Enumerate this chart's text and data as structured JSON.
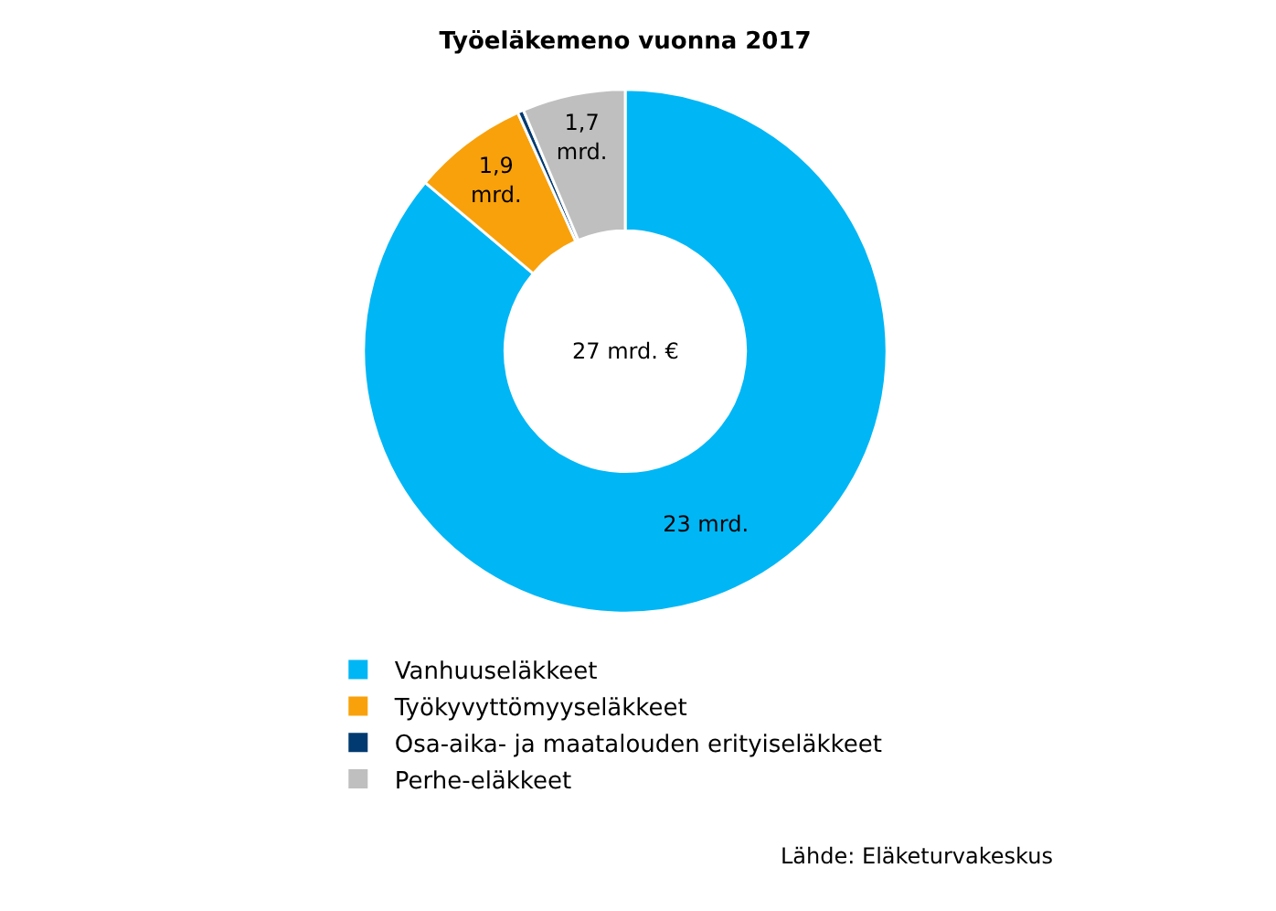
{
  "chart_data": {
    "type": "donut",
    "title": "Työeläkemeno vuonna 2017",
    "categories": [
      "Vanhuuseläkkeet",
      "Työkyvyttömyyseläkkeet",
      "Osa-aika- ja maatalouden erityiseläkkeet",
      "Perhe-eläkkeet"
    ],
    "values": [
      23,
      1.9,
      0.1,
      1.7
    ],
    "colors": [
      "#00b6f5",
      "#f9a10b",
      "#003a70",
      "#bfbfbf"
    ],
    "value_labels": [
      "23 mrd.",
      "1,9\nmrd.",
      null,
      "1,7\nmrd."
    ],
    "annotations": [
      "27 mrd. €",
      "Lähde: Eläketurvakeskus"
    ],
    "legend": "bottom"
  }
}
